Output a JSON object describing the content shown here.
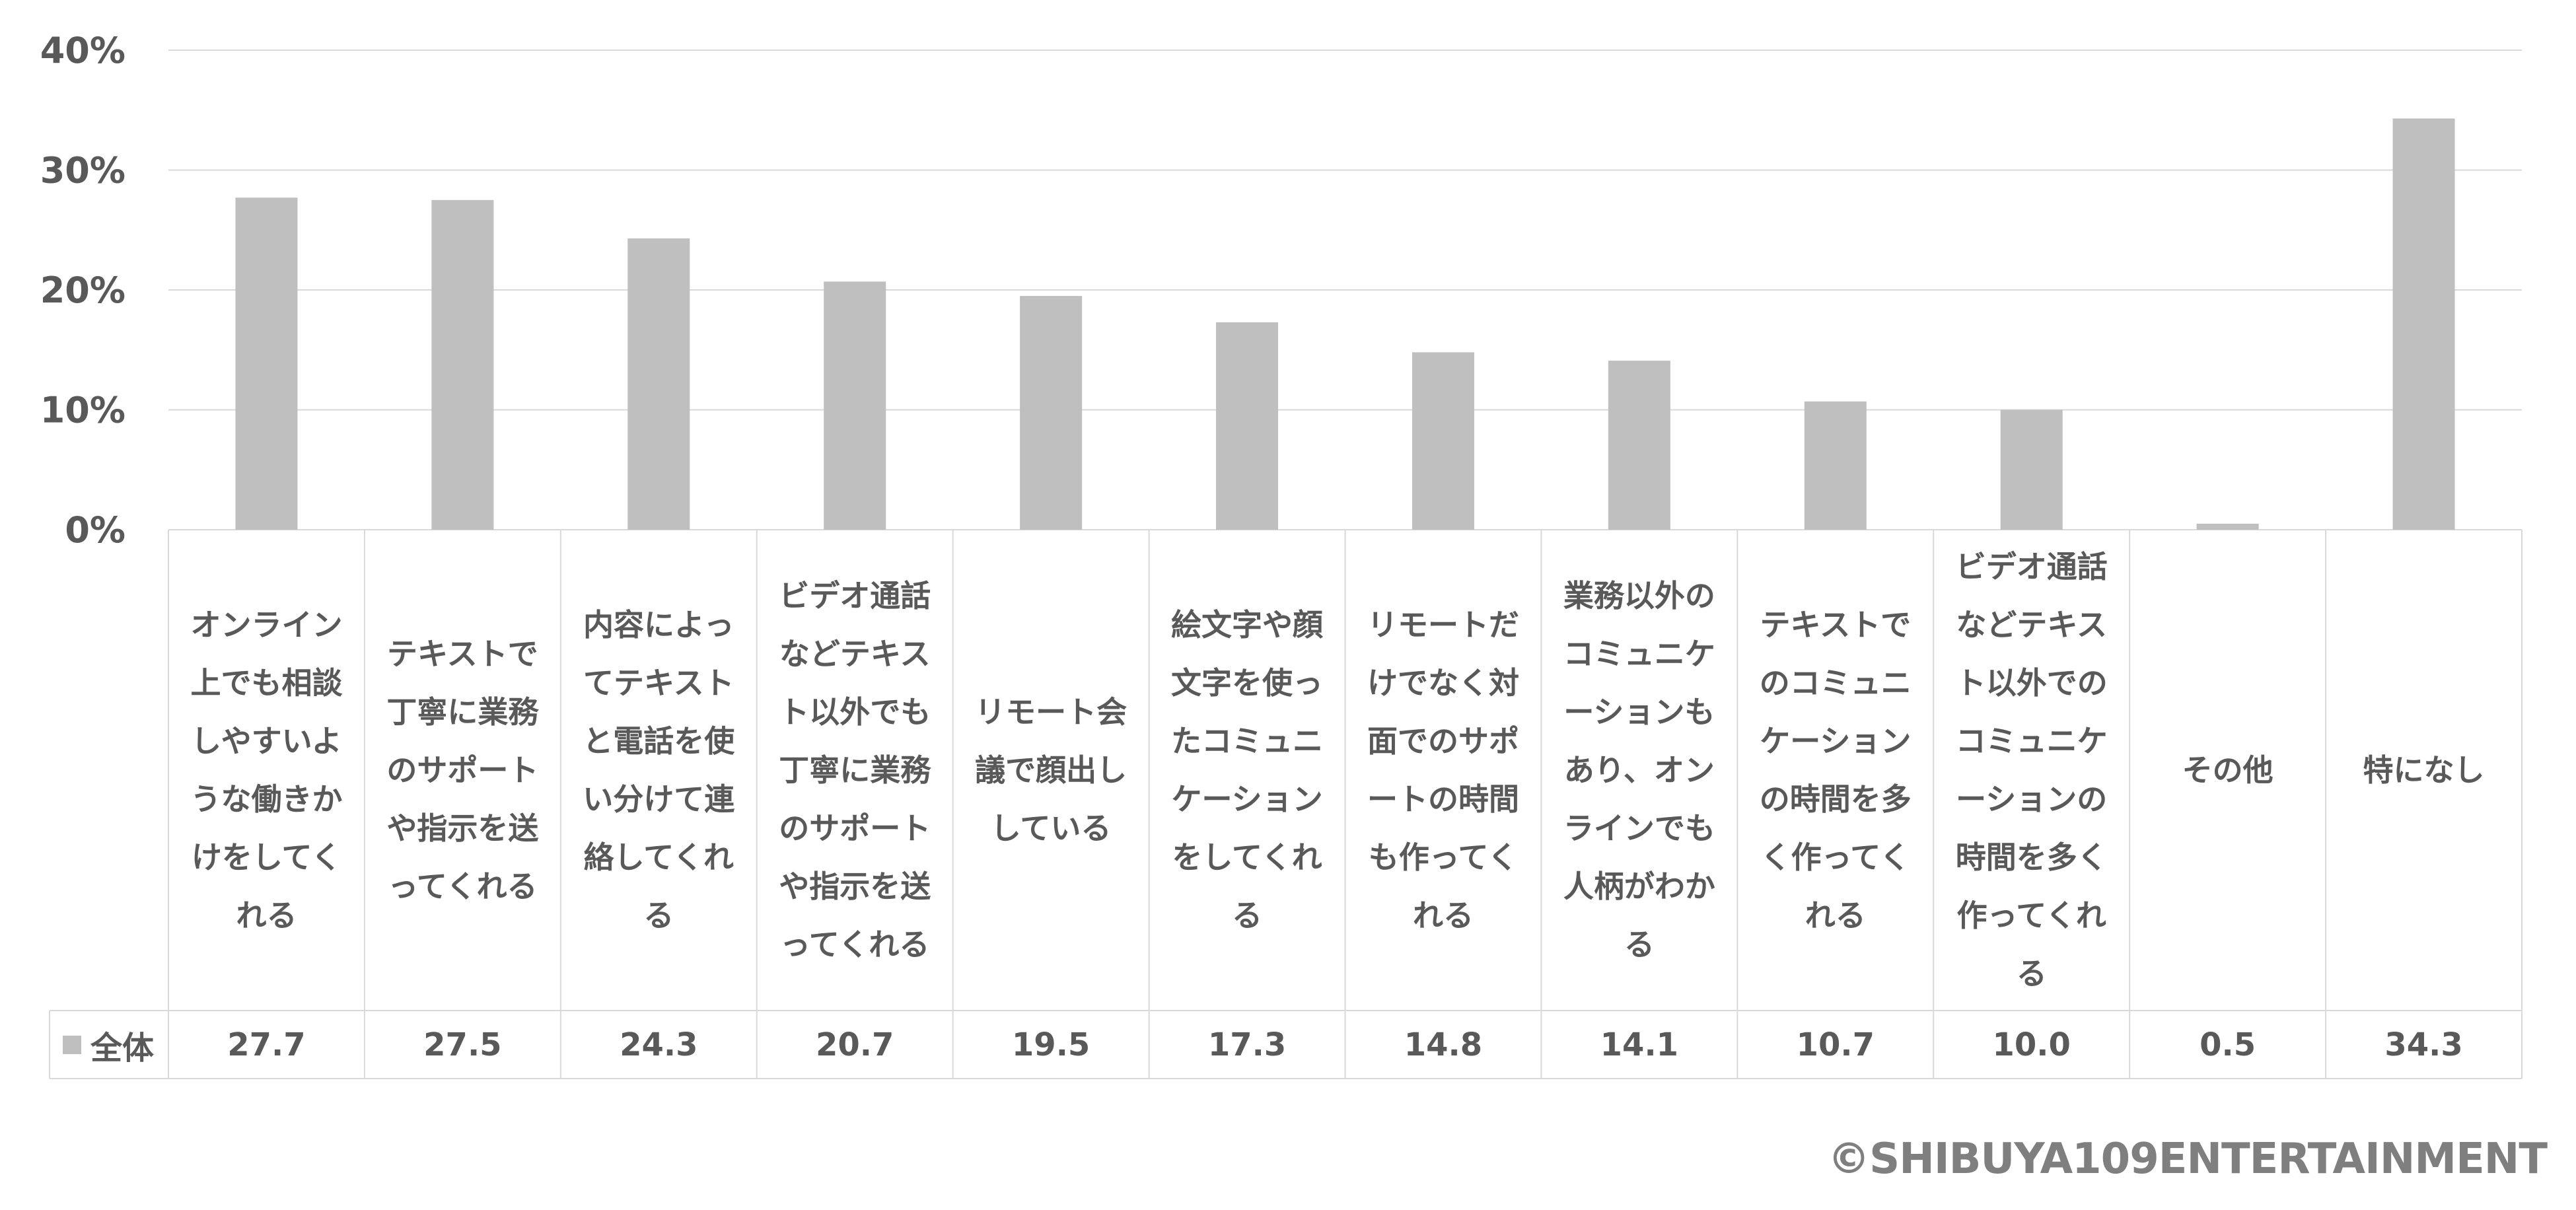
{
  "chart_data": {
    "type": "bar",
    "categories": [
      "オンライン上でも相談しやすいような働きかけをしてくれる",
      "テキストで丁寧に業務のサポートや指示を送ってくれる",
      "内容によってテキストと電話を使い分けて連絡してくれる",
      "ビデオ通話などテキスト以外でも丁寧に業務のサポートや指示を送ってくれる",
      "リモート会議で顔出ししている",
      "絵文字や顔文字を使ったコミュニケーションをしてくれる",
      "リモートだけでなく対面でのサポートの時間も作ってくれる",
      "業務以外のコミュニケーションもあり、オンラインでも人柄がわかる",
      "テキストでのコミュニケーションの時間を多く作ってくれる",
      "ビデオ通話などテキスト以外でのコミュニケーションの時間を多く作ってくれる",
      "その他",
      "特になし"
    ],
    "series": [
      {
        "name": "全体",
        "values": [
          27.7,
          27.5,
          24.3,
          20.7,
          19.5,
          17.3,
          14.8,
          14.1,
          10.7,
          10.0,
          0.5,
          34.3
        ],
        "value_labels": [
          "27.7",
          "27.5",
          "24.3",
          "20.7",
          "19.5",
          "17.3",
          "14.8",
          "14.1",
          "10.7",
          "10.0",
          "0.5",
          "34.3"
        ]
      }
    ],
    "ylim": [
      0,
      40
    ],
    "yticks": [
      "0%",
      "10%",
      "20%",
      "30%",
      "40%"
    ],
    "grid": true,
    "data_table": true,
    "bar_color": "#bfbfbf",
    "grid_color": "#d9d9d9"
  },
  "copyright": "©SHIBUYA109ENTERTAINMENT"
}
